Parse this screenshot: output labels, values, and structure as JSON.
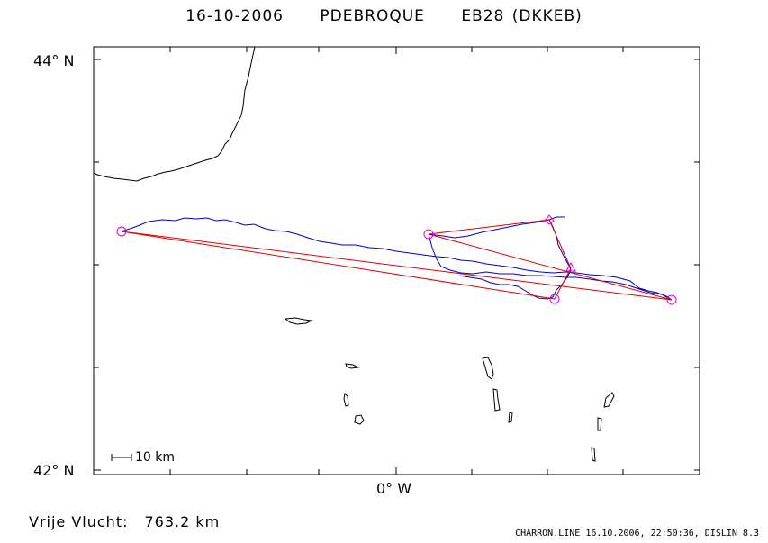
{
  "title": {
    "date": "16-10-2006",
    "pilot": "PDEBROQUE",
    "glider": "EB28 (DKKEB)"
  },
  "axes": {
    "y_top_label": "44° N",
    "y_bottom_label": "42° N",
    "x_label": "0° W"
  },
  "scale_bar": {
    "label": "10 km"
  },
  "distance": {
    "label": "Vrije Vlucht:",
    "value": "763.2 km"
  },
  "footer": "CHARRON.LINE 16.10.2006, 22:50:36, DISLIN 8.3",
  "colors": {
    "track": "#0000cc",
    "task": "#e00000",
    "turnpoint": "#e000e0",
    "coast": "#000000"
  },
  "map_data": {
    "lat_range": [
      42.0,
      44.0
    ],
    "lon_range": [
      -2.0,
      2.0
    ],
    "lon_ticks": [
      0.0
    ],
    "lat_ticks": [
      44.0,
      42.0
    ]
  }
}
